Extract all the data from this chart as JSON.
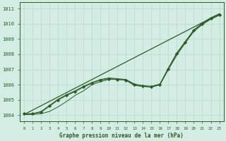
{
  "title": "Graphe pression niveau de la mer (hPa)",
  "background_color": "#d4ede4",
  "grid_color": "#b8d8cc",
  "line_color": "#2d5a27",
  "xlim": [
    -0.5,
    23.5
  ],
  "ylim": [
    1003.6,
    1011.4
  ],
  "yticks": [
    1004,
    1005,
    1006,
    1007,
    1008,
    1009,
    1010,
    1011
  ],
  "xticks": [
    0,
    1,
    2,
    3,
    4,
    5,
    6,
    7,
    8,
    9,
    10,
    11,
    12,
    13,
    14,
    15,
    16,
    17,
    18,
    19,
    20,
    21,
    22,
    23
  ],
  "xtick_labels": [
    "0",
    "1",
    "2",
    "3",
    "4",
    "5",
    "6",
    "7",
    "8",
    "9",
    "10",
    "11",
    "12",
    "13",
    "14",
    "15",
    "16",
    "17",
    "18",
    "19",
    "20",
    "21",
    "22",
    "23"
  ],
  "ytick_labels": [
    "1004",
    "1005",
    "1006",
    "1007",
    "1008",
    "1009",
    "1010",
    "1011"
  ],
  "straight_line_x": [
    0,
    23
  ],
  "straight_line_y": [
    1004.05,
    1010.65
  ],
  "main_series_x": [
    0,
    1,
    2,
    3,
    4,
    5,
    6,
    7,
    8,
    9,
    10,
    11,
    12,
    13,
    14,
    15,
    16,
    17,
    18,
    19,
    20,
    21,
    22,
    23
  ],
  "main_series_y": [
    1004.1,
    1004.1,
    1004.2,
    1004.6,
    1005.0,
    1005.3,
    1005.55,
    1005.85,
    1006.1,
    1006.3,
    1006.4,
    1006.35,
    1006.3,
    1006.0,
    1005.9,
    1005.85,
    1006.0,
    1007.05,
    1008.05,
    1008.8,
    1009.55,
    1010.0,
    1010.35,
    1010.6
  ],
  "series_a_x": [
    0,
    1,
    2,
    3,
    4,
    5,
    6,
    7,
    8,
    9,
    10,
    11,
    12,
    13,
    14,
    15,
    16,
    17,
    18,
    19,
    20,
    21,
    22,
    23
  ],
  "series_a_y": [
    1004.05,
    1004.05,
    1004.1,
    1004.25,
    1004.55,
    1004.9,
    1005.3,
    1005.6,
    1006.0,
    1006.2,
    1006.35,
    1006.35,
    1006.3,
    1005.95,
    1005.9,
    1005.85,
    1006.0,
    1007.0,
    1007.95,
    1008.75,
    1009.5,
    1009.95,
    1010.3,
    1010.55
  ],
  "series_b_x": [
    0,
    1,
    2,
    3,
    4,
    5,
    6,
    7,
    8,
    9,
    10,
    11,
    12,
    13,
    14,
    15,
    16,
    17,
    18,
    19,
    20,
    21,
    22,
    23
  ],
  "series_b_y": [
    1004.05,
    1004.1,
    1004.25,
    1004.65,
    1005.05,
    1005.35,
    1005.6,
    1005.9,
    1006.15,
    1006.35,
    1006.45,
    1006.4,
    1006.35,
    1006.05,
    1005.95,
    1005.9,
    1006.05,
    1007.1,
    1008.1,
    1008.85,
    1009.6,
    1010.05,
    1010.4,
    1010.65
  ]
}
